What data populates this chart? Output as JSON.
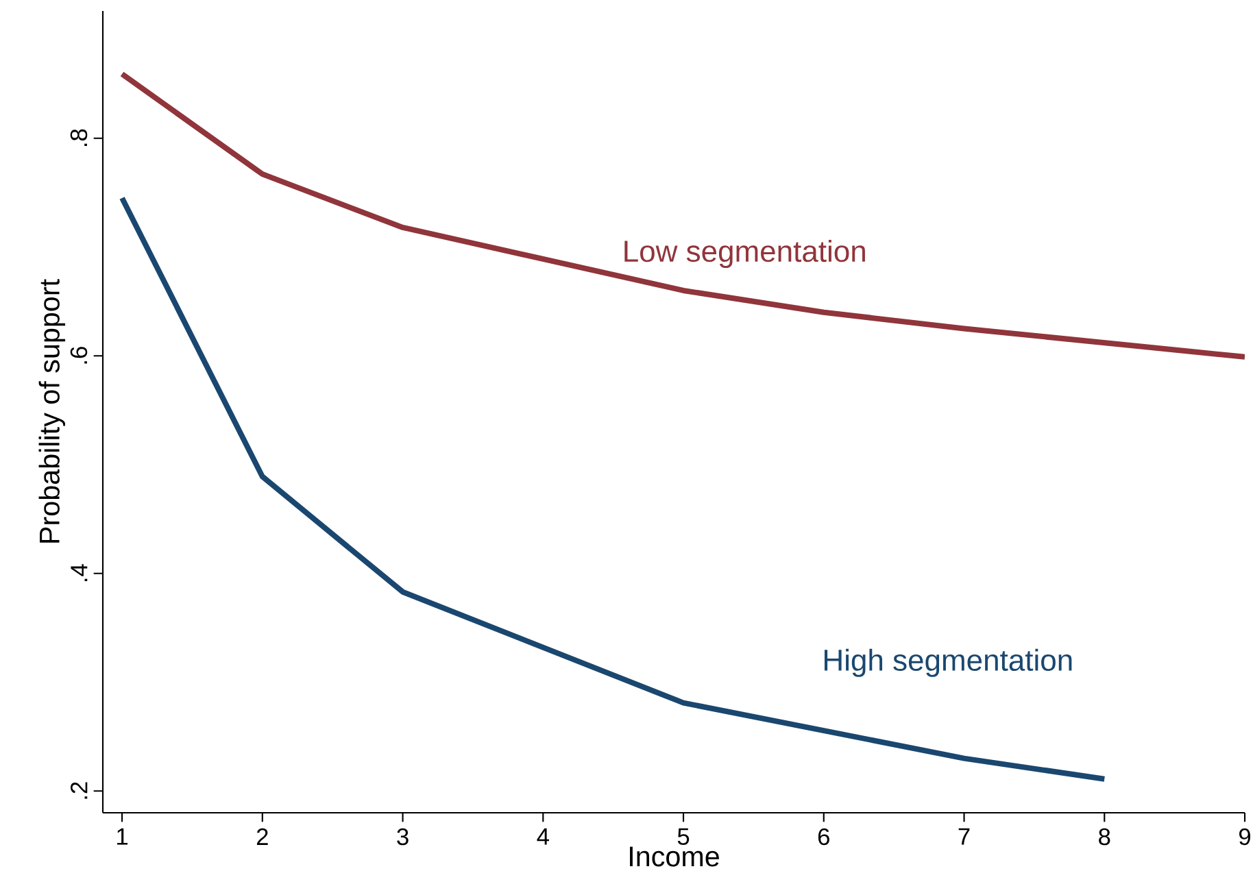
{
  "chart_data": {
    "type": "line",
    "xlabel": "Income",
    "ylabel": "Probability of support",
    "xlim": [
      0.863,
      9
    ],
    "ylim": [
      0.18,
      0.917
    ],
    "xticks": [
      1,
      2,
      3,
      4,
      5,
      6,
      7,
      8,
      9
    ],
    "yticks": [
      {
        "value": 0.2,
        "label": ".2"
      },
      {
        "value": 0.4,
        "label": ".4"
      },
      {
        "value": 0.6,
        "label": ".6"
      },
      {
        "value": 0.8,
        "label": ".8"
      }
    ],
    "series": [
      {
        "color": "#90353b",
        "x": [
          1,
          2,
          3,
          5,
          6,
          7,
          9
        ],
        "values": [
          0.859,
          0.767,
          0.718,
          0.66,
          0.64,
          0.625,
          0.599
        ]
      },
      {
        "color": "#1a476f",
        "x": [
          1,
          2,
          3,
          5,
          7,
          8
        ],
        "values": [
          0.745,
          0.489,
          0.383,
          0.281,
          0.23,
          0.211
        ]
      }
    ],
    "annotations": [
      "Low segmentation",
      "High segmentation"
    ],
    "marker": "none",
    "line_style": "solid"
  }
}
